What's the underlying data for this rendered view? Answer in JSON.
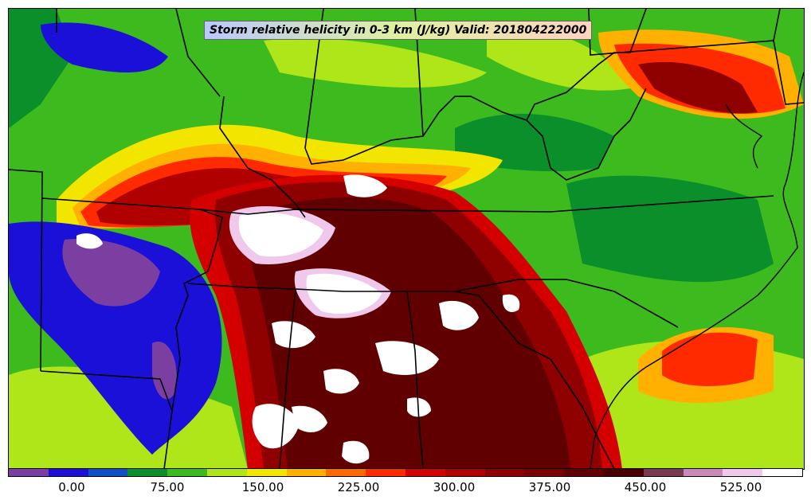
{
  "map": {
    "title": "Storm relative helicity in 0-3 km (J/kg) Valid: 201804222000",
    "field": "storm relative helicity 0-3 km",
    "units": "J/kg",
    "valid_time": "201804222000",
    "base_color": "#3dbb1e",
    "pattern": "high helicity band (375+) from lower Mississippi valley across Alabama/Georgia to Carolinas; low/negative values over Texas/Oklahoma (purple/blue); moderate 75-150 over Ohio valley; red band along Virginia/Maryland"
  },
  "colorbar": {
    "colors": [
      "#7a3fa0",
      "#1a10d8",
      "#1050c8",
      "#0a8f2a",
      "#3dbb1e",
      "#aee61a",
      "#f2e600",
      "#ffb000",
      "#ff6a00",
      "#ff2a00",
      "#d40000",
      "#b00000",
      "#8f0000",
      "#7a0000",
      "#600000",
      "#4a0000",
      "#7a3a50",
      "#c88ab8",
      "#efc8ec",
      "#ffffff"
    ],
    "labels": [
      "0.00",
      "75.00",
      "150.00",
      "225.00",
      "300.00",
      "375.00",
      "450.00",
      "525.00"
    ]
  }
}
